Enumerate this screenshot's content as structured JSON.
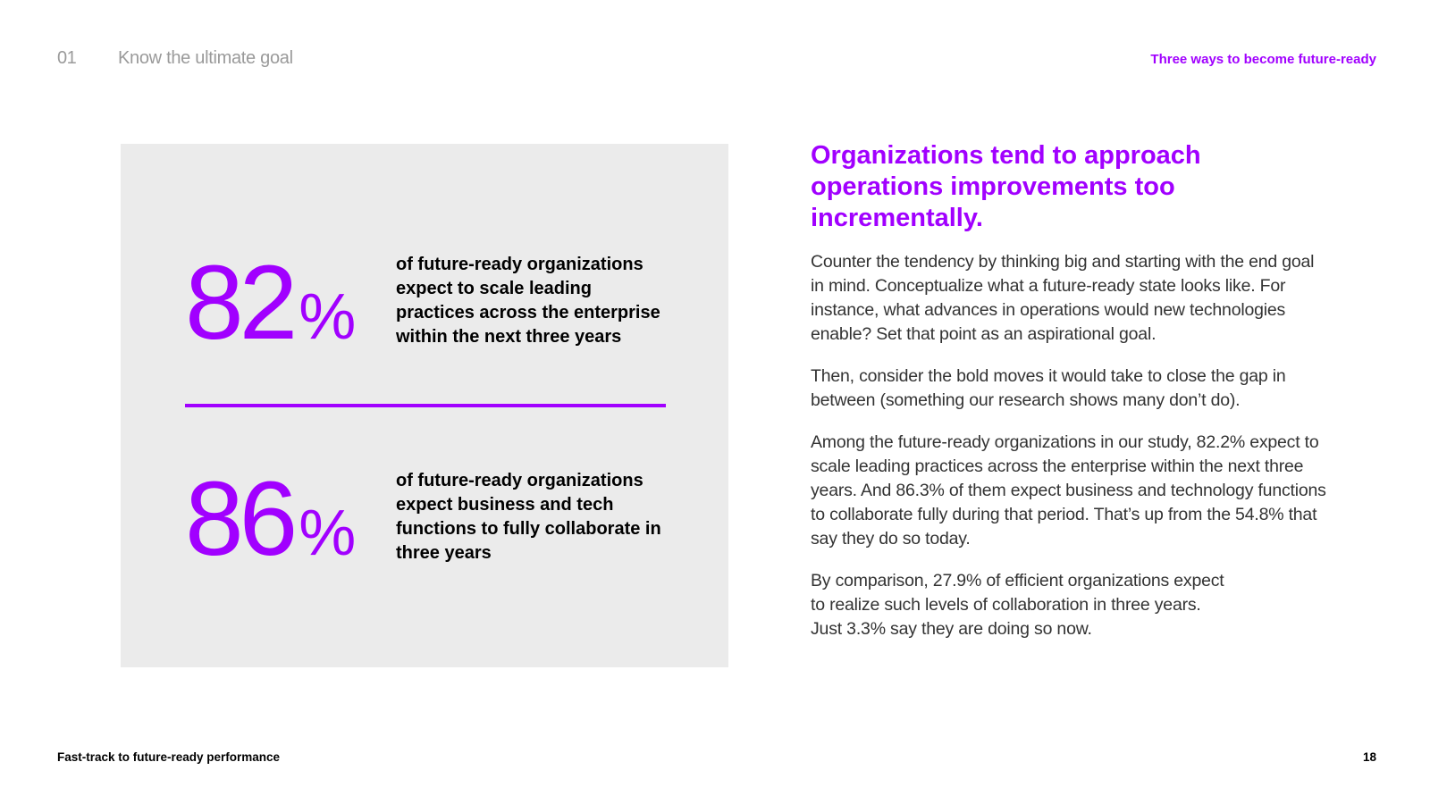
{
  "header": {
    "section_number": "01",
    "section_title": "Know the ultimate goal",
    "series_title": "Three ways to become future-ready"
  },
  "stats": [
    {
      "value": "82",
      "unit": "%",
      "description": "of future-ready organizations expect to scale leading practices across the enterprise within the next three years"
    },
    {
      "value": "86",
      "unit": "%",
      "description": "of future-ready organizations expect business and tech functions to fully collaborate in three years"
    }
  ],
  "main": {
    "heading": "Organizations tend to approach operations improvements too incrementally.",
    "paragraphs": [
      "Counter the tendency by thinking big and starting with the end goal in mind. Conceptualize what a future-ready state looks like. For instance, what advances in operations would new technologies enable? Set that point as an aspirational goal.",
      "Then, consider the bold moves it would take to close the gap in between (something our research shows many don’t do).",
      "Among the future-ready organizations in our study, 82.2% expect to scale leading practices across the enterprise within the next three years. And 86.3% of them expect business and technology functions to collaborate fully during that period. That’s up from the 54.8% that say they do so today.",
      "By comparison, 27.9% of efficient organizations expect\nto realize such levels of collaboration in three years.\nJust 3.3% say they are doing so now."
    ]
  },
  "footer": {
    "document_title": "Fast-track to future-ready performance",
    "page_number": "18"
  }
}
